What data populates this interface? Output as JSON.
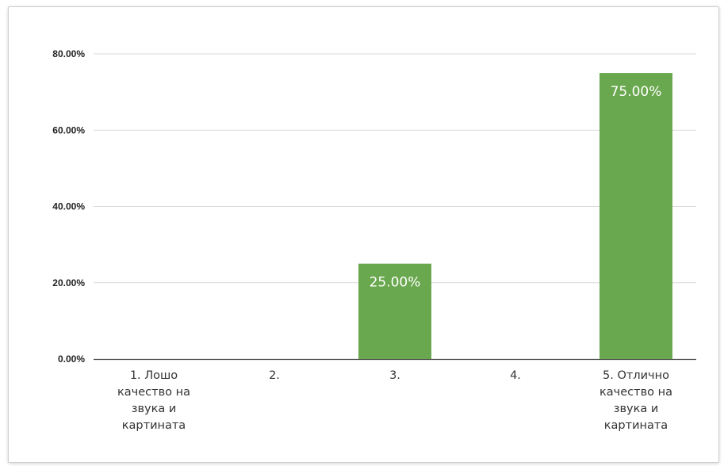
{
  "chart_data": {
    "type": "bar",
    "categories": [
      [
        "1. Лошо",
        "качество на",
        "звука и",
        "картината"
      ],
      [
        "2."
      ],
      [
        "3."
      ],
      [
        "4."
      ],
      [
        "5. Отлично",
        "качество на",
        "звука и",
        "картината"
      ]
    ],
    "values": [
      0,
      0,
      25,
      0,
      75
    ],
    "data_labels": [
      "",
      "",
      "25.00%",
      "",
      "75.00%"
    ],
    "yticks": [
      "0.00%",
      "20.00%",
      "40.00%",
      "60.00%",
      "80.00%"
    ],
    "ylim": [
      0,
      80
    ],
    "grid": true,
    "legend": "none",
    "bar_color": "#6aa84f",
    "grid_color": "#d9d9d9",
    "axis_color": "#444444"
  }
}
